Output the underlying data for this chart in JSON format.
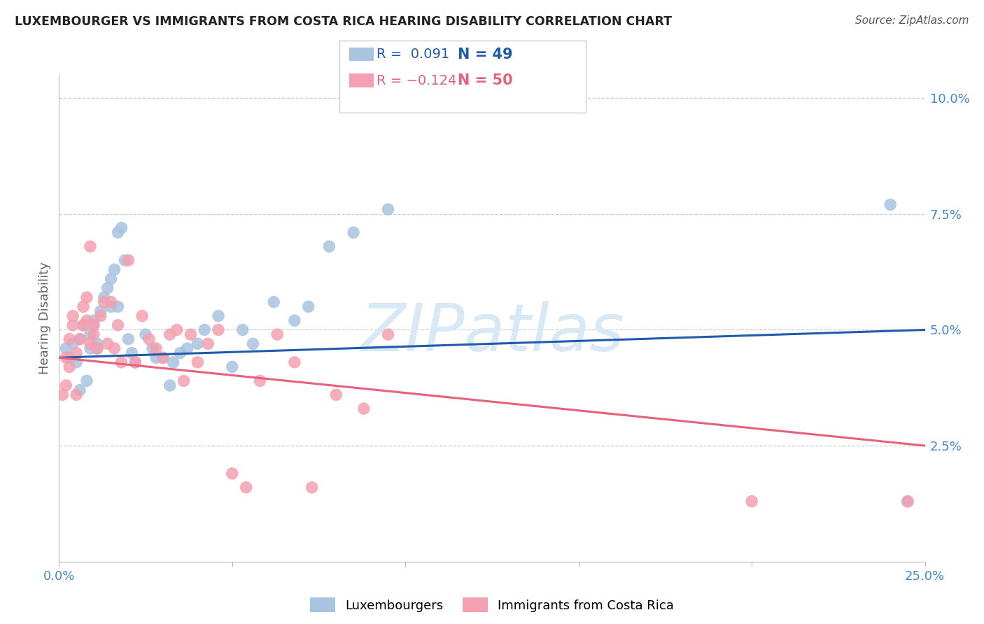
{
  "title": "LUXEMBOURGER VS IMMIGRANTS FROM COSTA RICA HEARING DISABILITY CORRELATION CHART",
  "source": "Source: ZipAtlas.com",
  "ylabel": "Hearing Disability",
  "xlim": [
    0.0,
    0.25
  ],
  "ylim": [
    0.0,
    0.105
  ],
  "yticks": [
    0.025,
    0.05,
    0.075,
    0.1
  ],
  "ytick_labels": [
    "2.5%",
    "5.0%",
    "7.5%",
    "10.0%"
  ],
  "xticks": [
    0.0,
    0.05,
    0.1,
    0.15,
    0.2,
    0.25
  ],
  "xtick_labels": [
    "0.0%",
    "",
    "",
    "",
    "",
    "25.0%"
  ],
  "blue_color": "#a8c4e0",
  "pink_color": "#f4a0b0",
  "blue_line_color": "#1f5baa",
  "pink_line_color": "#e8607a",
  "title_color": "#222222",
  "tick_color": "#4488cc",
  "watermark_color": "#d8e8f5",
  "luxembourgers_x": [
    0.002,
    0.003,
    0.004,
    0.005,
    0.006,
    0.006,
    0.007,
    0.008,
    0.009,
    0.009,
    0.01,
    0.01,
    0.011,
    0.011,
    0.012,
    0.013,
    0.014,
    0.015,
    0.015,
    0.016,
    0.017,
    0.017,
    0.018,
    0.019,
    0.02,
    0.021,
    0.022,
    0.025,
    0.027,
    0.028,
    0.03,
    0.032,
    0.033,
    0.035,
    0.037,
    0.04,
    0.042,
    0.046,
    0.05,
    0.053,
    0.056,
    0.062,
    0.068,
    0.072,
    0.078,
    0.085,
    0.095,
    0.24,
    0.245
  ],
  "luxembourgers_y": [
    0.046,
    0.044,
    0.047,
    0.043,
    0.048,
    0.037,
    0.051,
    0.039,
    0.046,
    0.049,
    0.051,
    0.052,
    0.047,
    0.046,
    0.054,
    0.057,
    0.059,
    0.061,
    0.055,
    0.063,
    0.055,
    0.071,
    0.072,
    0.065,
    0.048,
    0.045,
    0.043,
    0.049,
    0.046,
    0.044,
    0.044,
    0.038,
    0.043,
    0.045,
    0.046,
    0.047,
    0.05,
    0.053,
    0.042,
    0.05,
    0.047,
    0.056,
    0.052,
    0.055,
    0.068,
    0.071,
    0.076,
    0.077,
    0.013
  ],
  "costarica_x": [
    0.001,
    0.002,
    0.002,
    0.003,
    0.003,
    0.004,
    0.004,
    0.005,
    0.005,
    0.006,
    0.007,
    0.007,
    0.008,
    0.008,
    0.009,
    0.009,
    0.01,
    0.01,
    0.011,
    0.012,
    0.013,
    0.014,
    0.015,
    0.016,
    0.017,
    0.018,
    0.02,
    0.022,
    0.024,
    0.026,
    0.028,
    0.03,
    0.032,
    0.034,
    0.036,
    0.038,
    0.04,
    0.043,
    0.046,
    0.05,
    0.054,
    0.058,
    0.063,
    0.068,
    0.073,
    0.08,
    0.088,
    0.095,
    0.2,
    0.245
  ],
  "costarica_y": [
    0.036,
    0.038,
    0.044,
    0.042,
    0.048,
    0.051,
    0.053,
    0.036,
    0.045,
    0.048,
    0.051,
    0.055,
    0.052,
    0.057,
    0.068,
    0.047,
    0.049,
    0.051,
    0.046,
    0.053,
    0.056,
    0.047,
    0.056,
    0.046,
    0.051,
    0.043,
    0.065,
    0.043,
    0.053,
    0.048,
    0.046,
    0.044,
    0.049,
    0.05,
    0.039,
    0.049,
    0.043,
    0.047,
    0.05,
    0.019,
    0.016,
    0.039,
    0.049,
    0.043,
    0.016,
    0.036,
    0.033,
    0.049,
    0.013,
    0.013
  ]
}
